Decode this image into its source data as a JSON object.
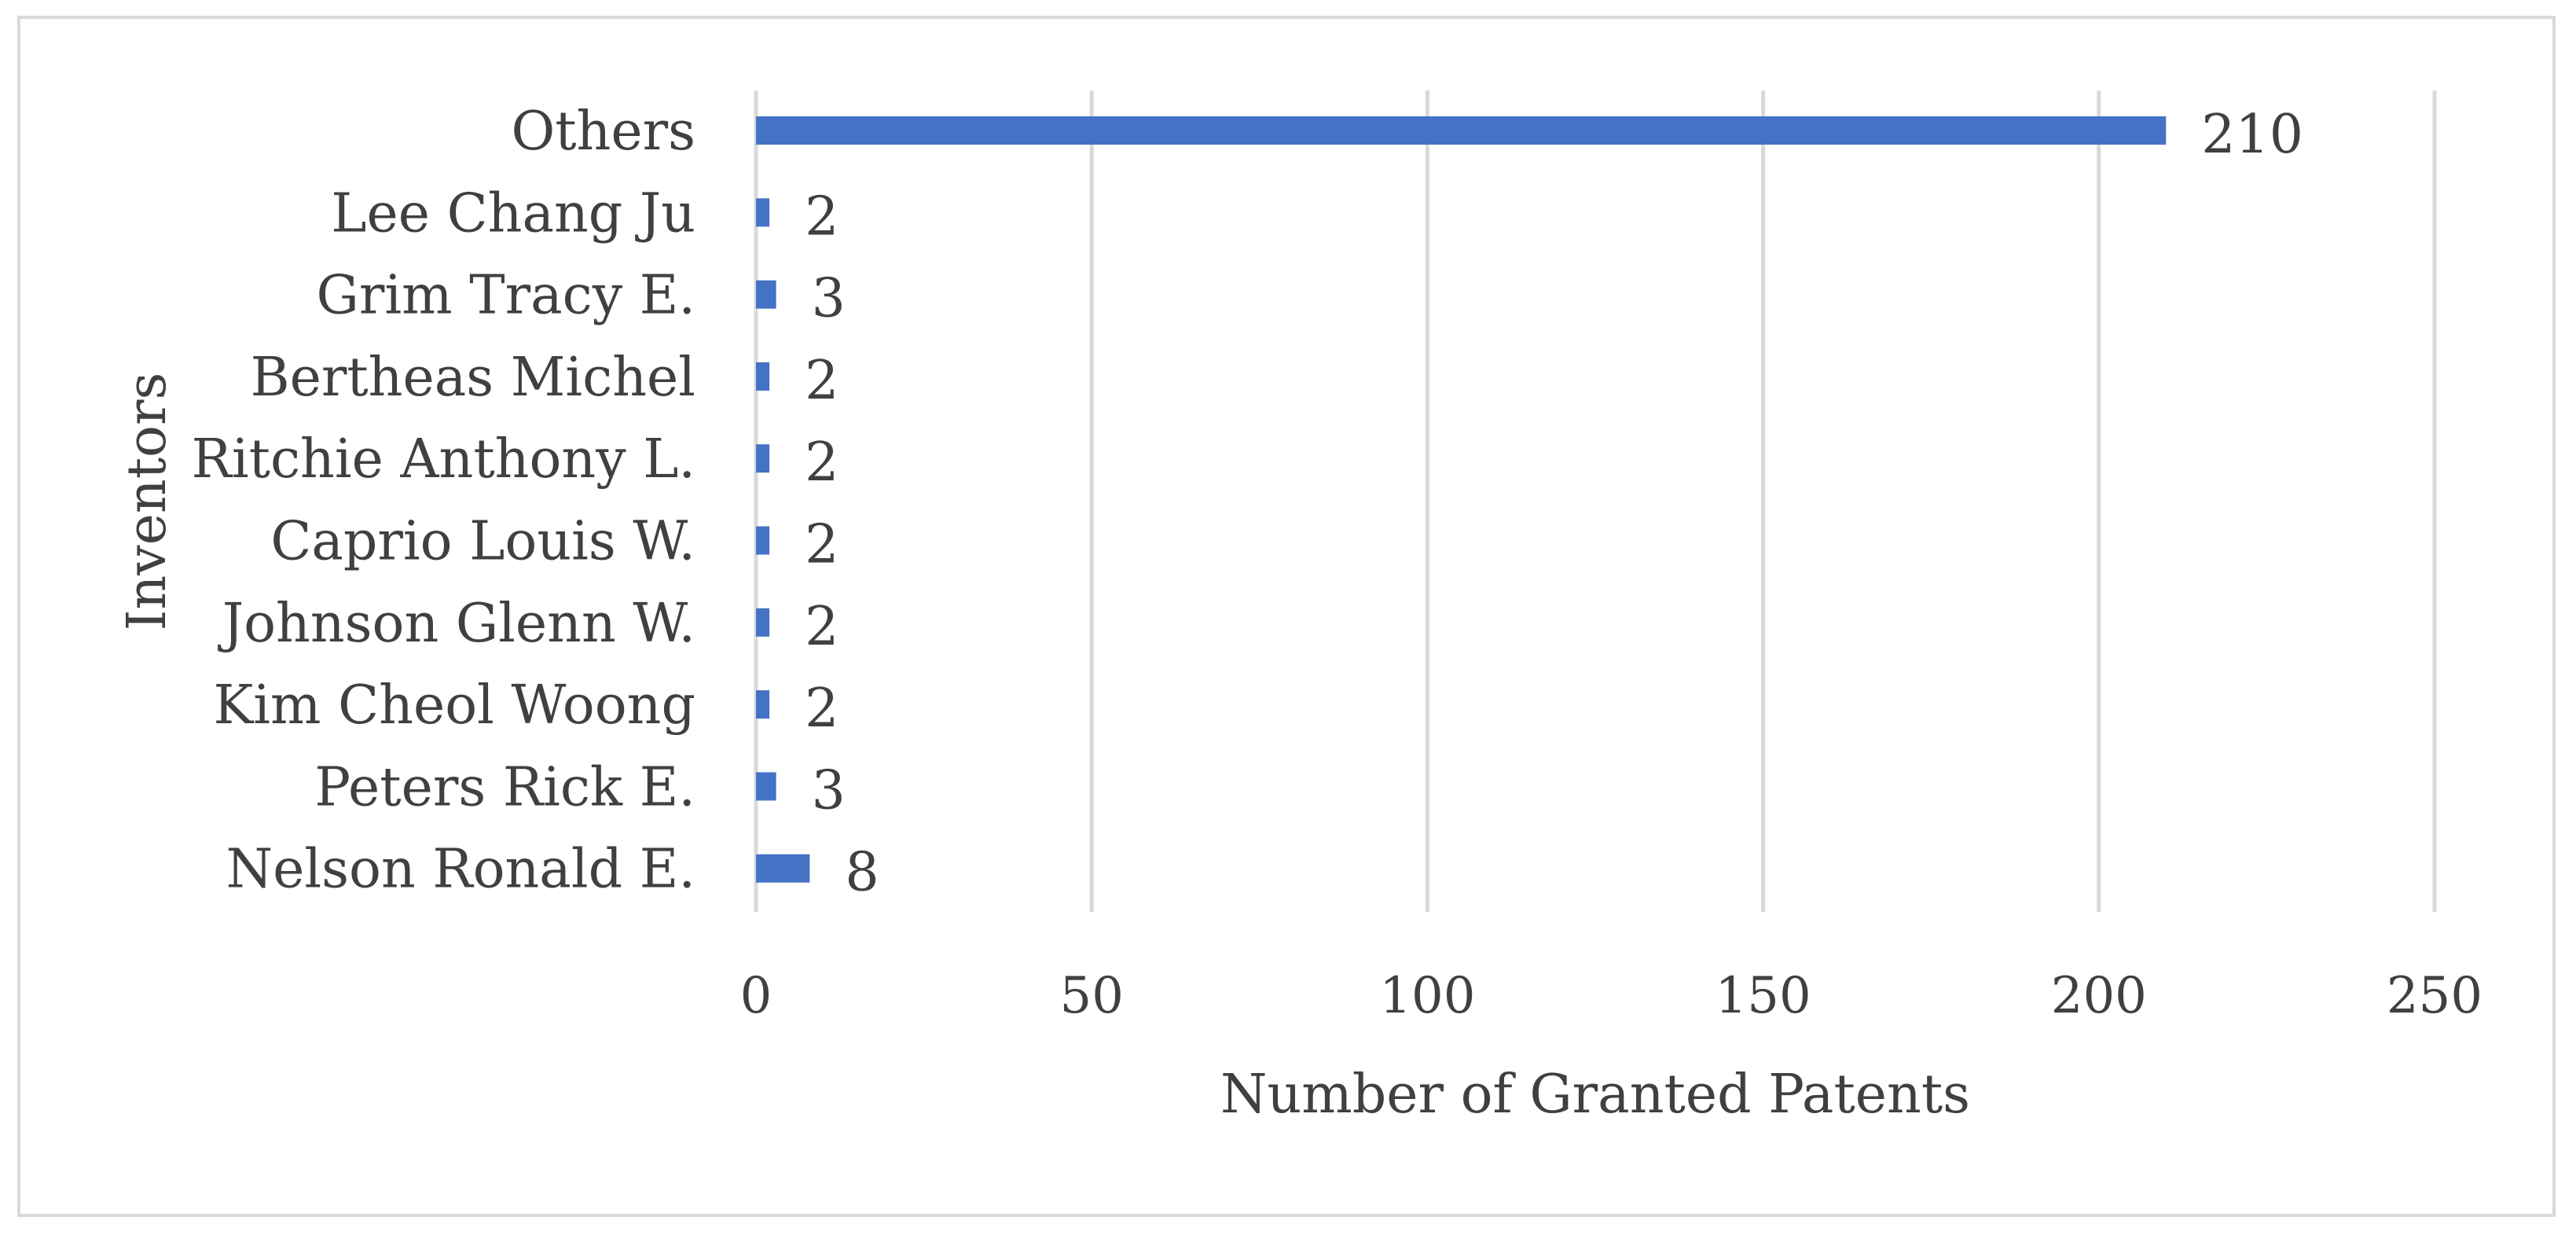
{
  "chart_data": {
    "type": "bar",
    "orientation": "horizontal",
    "categories": [
      "Others",
      "Lee Chang Ju",
      "Grim Tracy E.",
      "Bertheas Michel",
      "Ritchie Anthony L.",
      "Caprio Louis W.",
      "Johnson Glenn W.",
      "Kim Cheol Woong",
      "Peters Rick E.",
      "Nelson Ronald E."
    ],
    "values": [
      210,
      2,
      3,
      2,
      2,
      2,
      2,
      2,
      3,
      8
    ],
    "xlabel": "Number of Granted Patents",
    "ylabel": "Inventors",
    "xlim": [
      0,
      250
    ],
    "xticks": [
      "0",
      "50",
      "100",
      "150",
      "200",
      "250"
    ],
    "grid": "vertical",
    "legend": "none",
    "bar_color": "#4472C4"
  }
}
